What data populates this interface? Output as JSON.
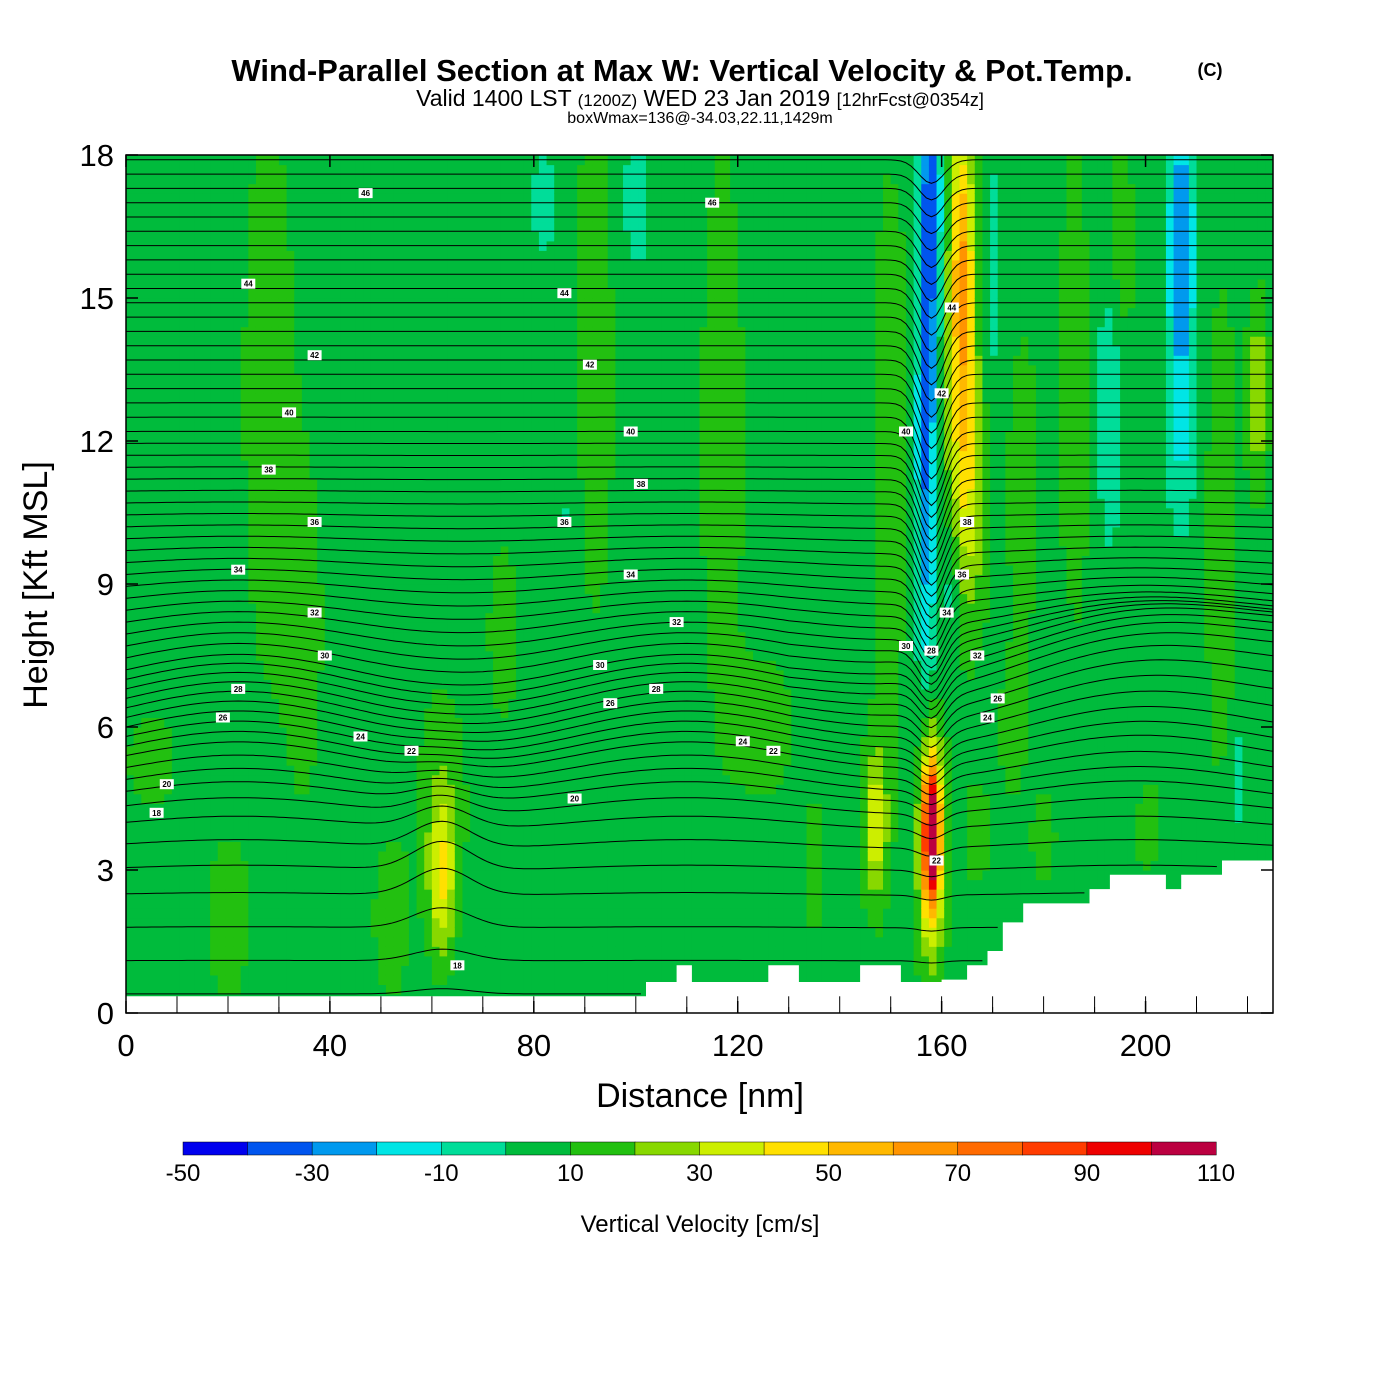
{
  "chart_data": {
    "type": "heatmap",
    "title": "Wind-Parallel Section at Max W: Vertical Velocity & Pot.Temp.",
    "copyright": "(C)",
    "subtitle_parts": [
      "Valid 1400 LST",
      "(1200Z)",
      "WED 23 Jan 2019",
      "[12hrFcst@0354z]"
    ],
    "subsubtitle": "boxWmax=136@-34.03,22.11,1429m",
    "xlabel": "Distance [nm]",
    "ylabel": "Height [Kft MSL]",
    "xlim": [
      0,
      225
    ],
    "ylim": [
      0,
      18
    ],
    "xticks": [
      0,
      40,
      80,
      120,
      160,
      200
    ],
    "yticks": [
      0,
      3,
      6,
      9,
      12,
      15,
      18
    ],
    "colorbar": {
      "label": "Vertical Velocity [cm/s]",
      "levels": [
        -50,
        -40,
        -30,
        -20,
        -10,
        0,
        10,
        20,
        30,
        40,
        50,
        60,
        70,
        80,
        90,
        100,
        110
      ],
      "tick_labels": [
        "-50",
        "-30",
        "-10",
        "10",
        "30",
        "50",
        "70",
        "90",
        "110"
      ],
      "colors": [
        "#0000ee",
        "#0055ee",
        "#0099ee",
        "#00e5e5",
        "#00dd99",
        "#00bb3c",
        "#22c010",
        "#88d800",
        "#ccee00",
        "#ffe000",
        "#ffb800",
        "#ff9400",
        "#ff6a00",
        "#ff3c00",
        "#ee0000",
        "#bb0040"
      ]
    },
    "background_w": 5,
    "features": [
      {
        "x": 28,
        "z": 13,
        "sx": 5,
        "sz": 6,
        "w": 13
      },
      {
        "x": 35,
        "z": 8,
        "sx": 4,
        "sz": 4,
        "w": 10
      },
      {
        "x": 10,
        "z": 17,
        "sx": 6,
        "sz": 2,
        "w": 4
      },
      {
        "x": 62,
        "z": 2.8,
        "sx": 2.5,
        "sz": 1.6,
        "w": 32
      },
      {
        "x": 62,
        "z": 4.5,
        "sx": 5,
        "sz": 2.5,
        "w": 12
      },
      {
        "x": 52,
        "z": 2,
        "sx": 4,
        "sz": 2,
        "w": 10
      },
      {
        "x": 20,
        "z": 2,
        "sx": 5,
        "sz": 2,
        "w": 10
      },
      {
        "x": 5,
        "z": 5.3,
        "sx": 5,
        "sz": 1,
        "w": 12
      },
      {
        "x": 74,
        "z": 8,
        "sx": 3,
        "sz": 2,
        "w": 12
      },
      {
        "x": 92,
        "z": 14,
        "sx": 4,
        "sz": 6,
        "w": 12
      },
      {
        "x": 117,
        "z": 12,
        "sx": 4,
        "sz": 6,
        "w": 14
      },
      {
        "x": 125,
        "z": 6,
        "sx": 6,
        "sz": 1.5,
        "w": 12
      },
      {
        "x": 82,
        "z": 17,
        "sx": 3,
        "sz": 1.5,
        "w": -8
      },
      {
        "x": 100,
        "z": 17,
        "sx": 4,
        "sz": 2,
        "w": -8
      },
      {
        "x": 87,
        "z": 10.5,
        "sx": 2,
        "sz": 1,
        "w": -7
      },
      {
        "x": 112,
        "z": 4.5,
        "sx": 2.5,
        "sz": 2,
        "w": -5
      },
      {
        "x": 100,
        "z": 11,
        "sx": 1.5,
        "sz": 1.5,
        "w": -5
      },
      {
        "x": 147,
        "z": 4,
        "sx": 2.5,
        "sz": 1.7,
        "w": 32
      },
      {
        "x": 150,
        "z": 12,
        "sx": 4,
        "sz": 6,
        "w": 12
      },
      {
        "x": 158,
        "z": 3.8,
        "sx": 1.6,
        "sz": 1.5,
        "w": 95
      },
      {
        "x": 158,
        "z": 3.5,
        "sx": 2.8,
        "sz": 2.6,
        "w": 36
      },
      {
        "x": 164,
        "z": 15.5,
        "sx": 2.5,
        "sz": 3.5,
        "w": 56
      },
      {
        "x": 165,
        "z": 11,
        "sx": 4,
        "sz": 3,
        "w": 30
      },
      {
        "x": 157,
        "z": 12,
        "sx": 2,
        "sz": 5,
        "w": -38
      },
      {
        "x": 158,
        "z": 17,
        "sx": 2,
        "sz": 2.5,
        "w": -35
      },
      {
        "x": 162,
        "z": 9,
        "sx": 2,
        "sz": 1.5,
        "w": -15
      },
      {
        "x": 170,
        "z": 15,
        "sx": 2.5,
        "sz": 4,
        "w": -8
      },
      {
        "x": 176,
        "z": 11,
        "sx": 3,
        "sz": 3,
        "w": 15
      },
      {
        "x": 174,
        "z": 6,
        "sx": 2.5,
        "sz": 1.5,
        "w": 14
      },
      {
        "x": 184,
        "z": 6.5,
        "sx": 2,
        "sz": 2,
        "w": -6
      },
      {
        "x": 186,
        "z": 13,
        "sx": 3,
        "sz": 5,
        "w": 14
      },
      {
        "x": 193,
        "z": 13,
        "sx": 2.5,
        "sz": 3,
        "w": -15
      },
      {
        "x": 195,
        "z": 16,
        "sx": 3,
        "sz": 2.5,
        "w": 12
      },
      {
        "x": 207,
        "z": 16,
        "sx": 2.5,
        "sz": 3,
        "w": -38
      },
      {
        "x": 207,
        "z": 12,
        "sx": 3,
        "sz": 2,
        "w": -12
      },
      {
        "x": 197,
        "z": 5,
        "sx": 3,
        "sz": 1.5,
        "w": -6
      },
      {
        "x": 215,
        "z": 10,
        "sx": 3,
        "sz": 5,
        "w": 15
      },
      {
        "x": 222,
        "z": 13,
        "sx": 2,
        "sz": 2,
        "w": 25
      },
      {
        "x": 220,
        "z": 17,
        "sx": 3,
        "sz": 1.5,
        "w": -5
      },
      {
        "x": 218,
        "z": 5,
        "sx": 2,
        "sz": 1.5,
        "w": -10
      },
      {
        "x": 167,
        "z": 3.8,
        "sx": 2.5,
        "sz": 1,
        "w": 15
      },
      {
        "x": 180,
        "z": 3.7,
        "sx": 2.5,
        "sz": 1,
        "w": 12
      },
      {
        "x": 200,
        "z": 4,
        "sx": 3,
        "sz": 1.2,
        "w": 12
      },
      {
        "x": 135,
        "z": 3,
        "sx": 3,
        "sz": 2,
        "w": 8
      }
    ],
    "terrain": [
      [
        0,
        0.35
      ],
      [
        101,
        0.35
      ],
      [
        102,
        0.65
      ],
      [
        107,
        0.65
      ],
      [
        108,
        1.0
      ],
      [
        110,
        1.0
      ],
      [
        111,
        0.65
      ],
      [
        125,
        0.65
      ],
      [
        126,
        1.0
      ],
      [
        131,
        1.0
      ],
      [
        132,
        0.65
      ],
      [
        143,
        0.65
      ],
      [
        144,
        1.0
      ],
      [
        151,
        1.0
      ],
      [
        152,
        0.65
      ],
      [
        159,
        0.65
      ],
      [
        160,
        0.7
      ],
      [
        164,
        0.7
      ],
      [
        165,
        1.0
      ],
      [
        168,
        1.0
      ],
      [
        169,
        1.3
      ],
      [
        171,
        1.3
      ],
      [
        172,
        1.9
      ],
      [
        175,
        1.9
      ],
      [
        176,
        2.3
      ],
      [
        188,
        2.3
      ],
      [
        189,
        2.6
      ],
      [
        192,
        2.6
      ],
      [
        193,
        2.9
      ],
      [
        203,
        2.9
      ],
      [
        204,
        2.6
      ],
      [
        206,
        2.6
      ],
      [
        207,
        2.9
      ],
      [
        214,
        2.9
      ],
      [
        215,
        3.2
      ],
      [
        225,
        3.2
      ]
    ],
    "theta_contours": {
      "levels_kft": [
        0.4,
        1.1,
        1.8,
        2.5,
        3.05,
        3.55,
        4.0,
        4.35,
        4.65,
        4.9,
        5.15,
        5.4,
        5.6,
        5.8,
        6.0,
        6.2,
        6.4,
        6.6,
        6.8,
        7.0,
        7.2,
        7.45,
        7.7,
        7.95,
        8.2,
        8.45,
        8.7,
        8.95,
        9.2,
        9.45,
        9.7,
        9.95,
        10.2,
        10.45,
        10.7,
        10.95,
        11.2,
        11.45,
        11.7,
        11.95,
        12.2,
        12.5,
        12.8,
        13.1,
        13.4,
        13.7,
        14.0,
        14.3,
        14.6,
        14.9,
        15.2,
        15.5,
        15.8,
        16.1,
        16.4,
        16.7,
        17.0,
        17.3,
        17.6,
        17.9
      ],
      "labels": [
        {
          "text": "46",
          "x": 47,
          "z": 17.2
        },
        {
          "text": "46",
          "x": 115,
          "z": 17.0
        },
        {
          "text": "44",
          "x": 24,
          "z": 15.3
        },
        {
          "text": "44",
          "x": 86,
          "z": 15.1
        },
        {
          "text": "44",
          "x": 162,
          "z": 14.8
        },
        {
          "text": "42",
          "x": 37,
          "z": 13.8
        },
        {
          "text": "42",
          "x": 91,
          "z": 13.6
        },
        {
          "text": "42",
          "x": 160,
          "z": 13.0
        },
        {
          "text": "40",
          "x": 32,
          "z": 12.6
        },
        {
          "text": "40",
          "x": 99,
          "z": 12.2
        },
        {
          "text": "40",
          "x": 153,
          "z": 12.2
        },
        {
          "text": "38",
          "x": 28,
          "z": 11.4
        },
        {
          "text": "38",
          "x": 101,
          "z": 11.1
        },
        {
          "text": "38",
          "x": 165,
          "z": 10.3
        },
        {
          "text": "36",
          "x": 37,
          "z": 10.3
        },
        {
          "text": "36",
          "x": 86,
          "z": 10.3
        },
        {
          "text": "36",
          "x": 164,
          "z": 9.2
        },
        {
          "text": "34",
          "x": 22,
          "z": 9.3
        },
        {
          "text": "34",
          "x": 99,
          "z": 9.2
        },
        {
          "text": "34",
          "x": 161,
          "z": 8.4
        },
        {
          "text": "32",
          "x": 37,
          "z": 8.4
        },
        {
          "text": "32",
          "x": 108,
          "z": 8.2
        },
        {
          "text": "32",
          "x": 167,
          "z": 7.5
        },
        {
          "text": "30",
          "x": 39,
          "z": 7.5
        },
        {
          "text": "30",
          "x": 93,
          "z": 7.3
        },
        {
          "text": "30",
          "x": 153,
          "z": 7.7
        },
        {
          "text": "28",
          "x": 22,
          "z": 6.8
        },
        {
          "text": "28",
          "x": 104,
          "z": 6.8
        },
        {
          "text": "28",
          "x": 158,
          "z": 7.6
        },
        {
          "text": "26",
          "x": 19,
          "z": 6.2
        },
        {
          "text": "26",
          "x": 95,
          "z": 6.5
        },
        {
          "text": "26",
          "x": 171,
          "z": 6.6
        },
        {
          "text": "24",
          "x": 46,
          "z": 5.8
        },
        {
          "text": "24",
          "x": 121,
          "z": 5.7
        },
        {
          "text": "24",
          "x": 169,
          "z": 6.2
        },
        {
          "text": "22",
          "x": 56,
          "z": 5.5
        },
        {
          "text": "22",
          "x": 127,
          "z": 5.5
        },
        {
          "text": "22",
          "x": 159,
          "z": 3.2
        },
        {
          "text": "20",
          "x": 8,
          "z": 4.8
        },
        {
          "text": "20",
          "x": 88,
          "z": 4.5
        },
        {
          "text": "18",
          "x": 6,
          "z": 4.2
        },
        {
          "text": "18",
          "x": 65,
          "z": 1.0
        }
      ]
    }
  }
}
